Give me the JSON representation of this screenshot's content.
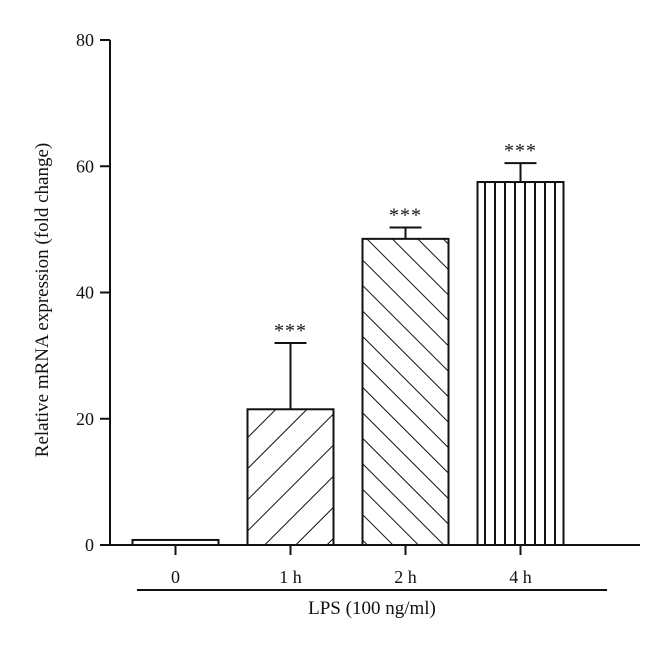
{
  "chart_data": {
    "type": "bar",
    "ylabel": "Relative mRNA expression (fold change)",
    "xlabel": "LPS (100 ng/ml)",
    "ylim": [
      0,
      80
    ],
    "yticks": [
      0,
      20,
      40,
      60,
      80
    ],
    "categories": [
      "0",
      "1 h",
      "2 h",
      "4 h"
    ],
    "values": [
      0.8,
      21.5,
      48.5,
      57.5
    ],
    "errors": [
      0.2,
      10.5,
      1.8,
      3.0
    ],
    "patterns": [
      "none",
      "diagonal-up",
      "diagonal-down",
      "vertical"
    ],
    "annotations": [
      "",
      "***",
      "***",
      "***"
    ],
    "grid": false,
    "legend": "none",
    "colors": {
      "stroke": "#111111",
      "fill": "#ffffff"
    }
  }
}
